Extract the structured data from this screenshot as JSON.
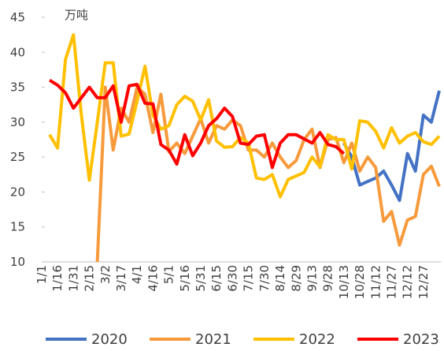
{
  "chart_data": {
    "type": "line",
    "unit_label": "万吨",
    "categories": [
      "1/1",
      null,
      "1/16",
      null,
      "1/31",
      null,
      "2/15",
      null,
      "3/2",
      null,
      "3/17",
      null,
      "4/1",
      null,
      "4/16",
      null,
      "5/1",
      null,
      "5/16",
      null,
      "5/31",
      null,
      "6/15",
      null,
      "6/30",
      null,
      "7/15",
      null,
      "7/30",
      null,
      "8/14",
      null,
      "8/29",
      null,
      "9/13",
      null,
      "9/28",
      null,
      "10/13",
      null,
      "10/28",
      null,
      "11/12",
      null,
      "11/27",
      null,
      "12/12",
      null,
      "12/27",
      null
    ],
    "ylim": [
      10,
      45
    ],
    "yticks": [
      10,
      15,
      20,
      25,
      30,
      35,
      40,
      45
    ],
    "legend": "bottom",
    "series": [
      {
        "name": "2020",
        "color": "#4472c4",
        "values": [
          null,
          null,
          null,
          null,
          null,
          null,
          null,
          null,
          null,
          null,
          null,
          null,
          null,
          null,
          null,
          null,
          null,
          null,
          null,
          null,
          null,
          null,
          null,
          null,
          null,
          null,
          null,
          null,
          null,
          null,
          null,
          null,
          null,
          null,
          null,
          null,
          null,
          27,
          25,
          21,
          21.5,
          22,
          23,
          21,
          18.8,
          25.5,
          23,
          31,
          30,
          34.5
        ]
      },
      {
        "name": "2021",
        "color": "#f79a3c",
        "values": [
          null,
          null,
          null,
          null,
          null,
          null,
          10,
          35,
          26,
          32,
          30,
          35,
          34,
          28.5,
          34,
          25.8,
          27,
          25.5,
          28,
          30.5,
          27,
          29.5,
          29,
          30.3,
          29.5,
          26,
          26,
          25,
          27,
          25,
          23.5,
          24.5,
          27.5,
          29,
          23.5,
          27.5,
          27.8,
          24.2,
          27,
          23,
          25,
          23.5,
          15.8,
          17.2,
          12.4,
          16,
          16.5,
          22.5,
          23.7,
          20.8
        ]
      },
      {
        "name": "2022",
        "color": "#ffc000",
        "values": [
          28.2,
          26.3,
          39,
          42.5,
          31,
          21.7,
          30,
          38.5,
          38.5,
          28,
          28.3,
          33,
          38,
          31,
          29,
          29.5,
          32.5,
          33.7,
          33,
          30.3,
          33.2,
          27.3,
          26.4,
          26.5,
          27.8,
          27,
          22,
          21.8,
          22.5,
          19.3,
          21.8,
          22.3,
          22.8,
          25,
          23.6,
          28.2,
          27.5,
          27.5,
          23.3,
          30.2,
          30,
          28.7,
          26.3,
          29.2,
          27,
          28,
          28.5,
          27.2,
          26.8,
          28
        ]
      },
      {
        "name": "2023",
        "color": "#ff0000",
        "values": [
          36,
          35.3,
          34.2,
          32,
          33.5,
          35,
          33.5,
          33.5,
          35.2,
          30,
          35.2,
          35.4,
          32.7,
          32.6,
          26.8,
          26,
          24,
          28.2,
          25.2,
          27,
          29.5,
          30.5,
          32,
          30.8,
          27,
          26.8,
          28,
          28.2,
          23.5,
          27,
          28.2,
          28.2,
          27.6,
          27,
          28.5,
          26.8,
          26.5,
          25.5,
          null,
          null,
          null,
          null,
          null,
          null,
          null,
          null,
          null,
          null,
          null,
          null
        ]
      }
    ]
  }
}
